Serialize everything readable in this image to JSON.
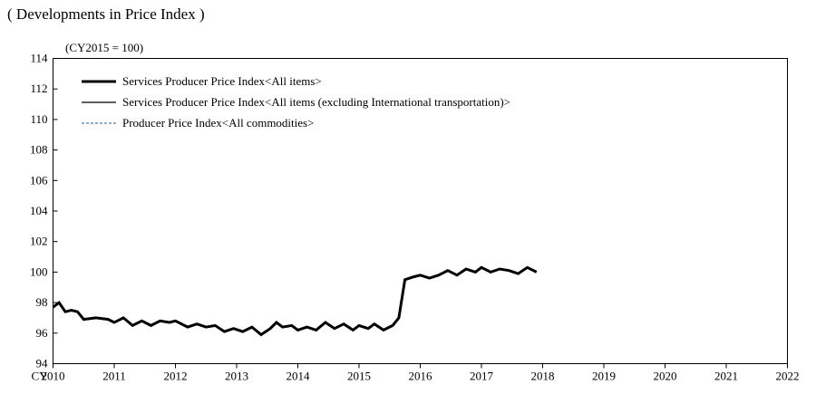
{
  "chart_data": {
    "type": "line",
    "title": "( Developments in Price Index )",
    "unit_label": "(CY2015 = 100)",
    "x_prefix": "CY",
    "xlim": [
      2010,
      2022
    ],
    "ylim": [
      94,
      114
    ],
    "x_ticks": [
      2010,
      2011,
      2012,
      2013,
      2014,
      2015,
      2016,
      2017,
      2018,
      2019,
      2020,
      2021,
      2022
    ],
    "y_ticks": [
      94,
      96,
      98,
      100,
      102,
      104,
      106,
      108,
      110,
      112,
      114
    ],
    "grid": false,
    "legend_position": "top-left",
    "series": [
      {
        "name": "Services Producer Price Index<All items>",
        "color": "#000000",
        "style": "thick",
        "points": [
          [
            2010.0,
            97.7
          ],
          [
            2010.1,
            98.0
          ],
          [
            2010.2,
            97.4
          ],
          [
            2010.3,
            97.5
          ],
          [
            2010.4,
            97.4
          ],
          [
            2010.5,
            96.9
          ],
          [
            2010.7,
            97.0
          ],
          [
            2010.9,
            96.9
          ],
          [
            2011.0,
            96.7
          ],
          [
            2011.15,
            97.0
          ],
          [
            2011.3,
            96.5
          ],
          [
            2011.45,
            96.8
          ],
          [
            2011.6,
            96.5
          ],
          [
            2011.75,
            96.8
          ],
          [
            2011.9,
            96.7
          ],
          [
            2012.0,
            96.8
          ],
          [
            2012.2,
            96.4
          ],
          [
            2012.35,
            96.6
          ],
          [
            2012.5,
            96.4
          ],
          [
            2012.65,
            96.5
          ],
          [
            2012.8,
            96.1
          ],
          [
            2012.95,
            96.3
          ],
          [
            2013.1,
            96.1
          ],
          [
            2013.25,
            96.4
          ],
          [
            2013.4,
            95.9
          ],
          [
            2013.55,
            96.3
          ],
          [
            2013.65,
            96.7
          ],
          [
            2013.75,
            96.4
          ],
          [
            2013.9,
            96.5
          ],
          [
            2014.0,
            96.2
          ],
          [
            2014.15,
            96.4
          ],
          [
            2014.3,
            96.2
          ],
          [
            2014.45,
            96.7
          ],
          [
            2014.6,
            96.3
          ],
          [
            2014.75,
            96.6
          ],
          [
            2014.9,
            96.2
          ],
          [
            2015.0,
            96.5
          ],
          [
            2015.15,
            96.3
          ],
          [
            2015.25,
            96.6
          ],
          [
            2015.4,
            96.2
          ],
          [
            2015.55,
            96.5
          ],
          [
            2015.65,
            97.0
          ],
          [
            2015.75,
            99.5
          ],
          [
            2015.9,
            99.7
          ],
          [
            2016.0,
            99.8
          ],
          [
            2016.15,
            99.6
          ],
          [
            2016.3,
            99.8
          ],
          [
            2016.45,
            100.1
          ],
          [
            2016.6,
            99.8
          ],
          [
            2016.75,
            100.2
          ],
          [
            2016.9,
            100.0
          ],
          [
            2017.0,
            100.3
          ],
          [
            2017.15,
            100.0
          ],
          [
            2017.3,
            100.2
          ],
          [
            2017.45,
            100.1
          ],
          [
            2017.6,
            99.9
          ],
          [
            2017.75,
            100.3
          ],
          [
            2017.9,
            100.0
          ]
        ]
      },
      {
        "name": "Services Producer Price Index<All items (excluding International transportation)>",
        "color": "#000000",
        "style": "thin",
        "points": []
      },
      {
        "name": "Producer Price Index<All commodities>",
        "color": "#4a7fb5",
        "style": "dashed",
        "points": []
      }
    ]
  }
}
